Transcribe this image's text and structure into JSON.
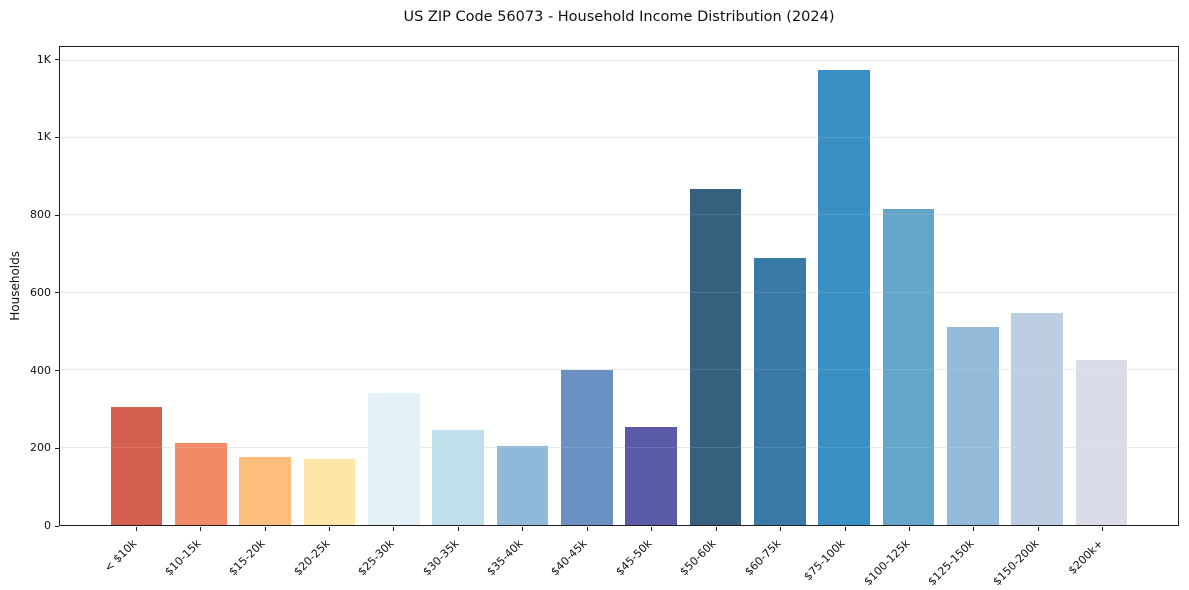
{
  "title": "US ZIP Code 56073 - Household Income Distribution (2024)",
  "chart_data": {
    "type": "bar",
    "title": "US ZIP Code 56073 - Household Income Distribution (2024)",
    "xlabel": "",
    "ylabel": "Households",
    "categories": [
      "< $10k",
      "$10-15k",
      "$15-20k",
      "$20-25k",
      "$25-30k",
      "$30-35k",
      "$35-40k",
      "$40-45k",
      "$45-50k",
      "$50-60k",
      "$60-75k",
      "$75-100k",
      "$100-125k",
      "$125-150k",
      "$150-200k",
      "$200k+"
    ],
    "values": [
      305,
      213,
      177,
      171,
      342,
      246,
      205,
      400,
      254,
      868,
      690,
      1175,
      817,
      512,
      549,
      427
    ],
    "bar_colors": [
      "#d5604f",
      "#f28a67",
      "#fcbd7d",
      "#fde6a8",
      "#e4f1f6",
      "#bedfeb",
      "#90b9d9",
      "#6b91c4",
      "#5a5aa9",
      "#36607e",
      "#3879a6",
      "#3a90c5",
      "#64a6ca",
      "#93bad9",
      "#bdcde2",
      "#dadcea"
    ],
    "ylim": [
      0,
      1235
    ],
    "yticks": {
      "values": [
        0,
        200,
        400,
        600,
        800,
        1000,
        1200
      ],
      "labels": [
        "0",
        "200",
        "400",
        "600",
        "800",
        "1K",
        "1K"
      ]
    },
    "grid": "horizontal",
    "gridline_color": "#e8e8e8",
    "spine_color": "#1f1f1f",
    "background_color": "#ffffff",
    "x_tick_rotation": -45,
    "legend": "none"
  }
}
